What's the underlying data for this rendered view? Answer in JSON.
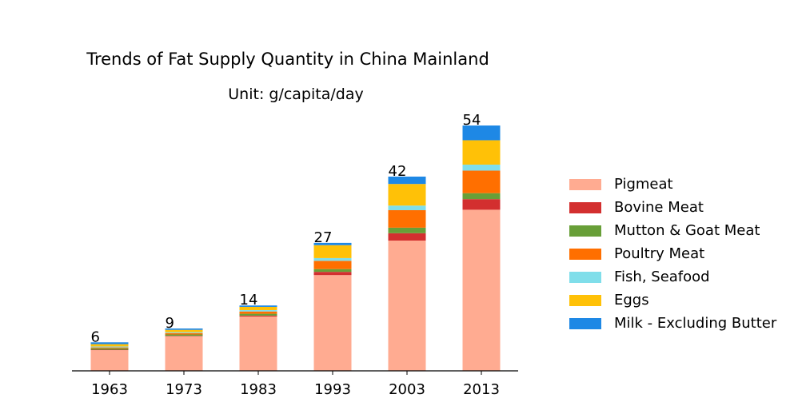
{
  "chart_data": {
    "type": "bar",
    "stacked": true,
    "title": "Trends of Fat Supply Quantity in China Mainland",
    "subtitle": "Unit: g/capita/day",
    "categories": [
      "1963",
      "1973",
      "1983",
      "1993",
      "2003",
      "2013"
    ],
    "totals_labels": [
      "6",
      "9",
      "14",
      "27",
      "42",
      "54"
    ],
    "ylim": [
      0,
      54
    ],
    "legend_position": "right",
    "grid": false,
    "series": [
      {
        "name": "Pigmeat",
        "color": "#FFAB91",
        "values": [
          4.5,
          7.5,
          11.8,
          20.8,
          28.3,
          35.0
        ]
      },
      {
        "name": "Bovine Meat",
        "color": "#D32F2F",
        "values": [
          0.1,
          0.1,
          0.2,
          0.7,
          1.6,
          2.3
        ]
      },
      {
        "name": "Mutton & Goat Meat",
        "color": "#689F38",
        "values": [
          0.3,
          0.3,
          0.4,
          0.6,
          1.2,
          1.3
        ]
      },
      {
        "name": "Poultry Meat",
        "color": "#FF6F00",
        "values": [
          0.2,
          0.3,
          0.5,
          1.8,
          3.8,
          4.9
        ]
      },
      {
        "name": "Fish, Seafood",
        "color": "#80DEEA",
        "values": [
          0.2,
          0.2,
          0.3,
          0.6,
          1.0,
          1.3
        ]
      },
      {
        "name": "Eggs",
        "color": "#FFC107",
        "values": [
          0.5,
          0.5,
          0.7,
          2.8,
          4.7,
          5.3
        ]
      },
      {
        "name": "Milk - Excluding Butter",
        "color": "#1E88E5",
        "values": [
          0.4,
          0.3,
          0.3,
          0.5,
          1.6,
          3.2
        ]
      }
    ]
  }
}
